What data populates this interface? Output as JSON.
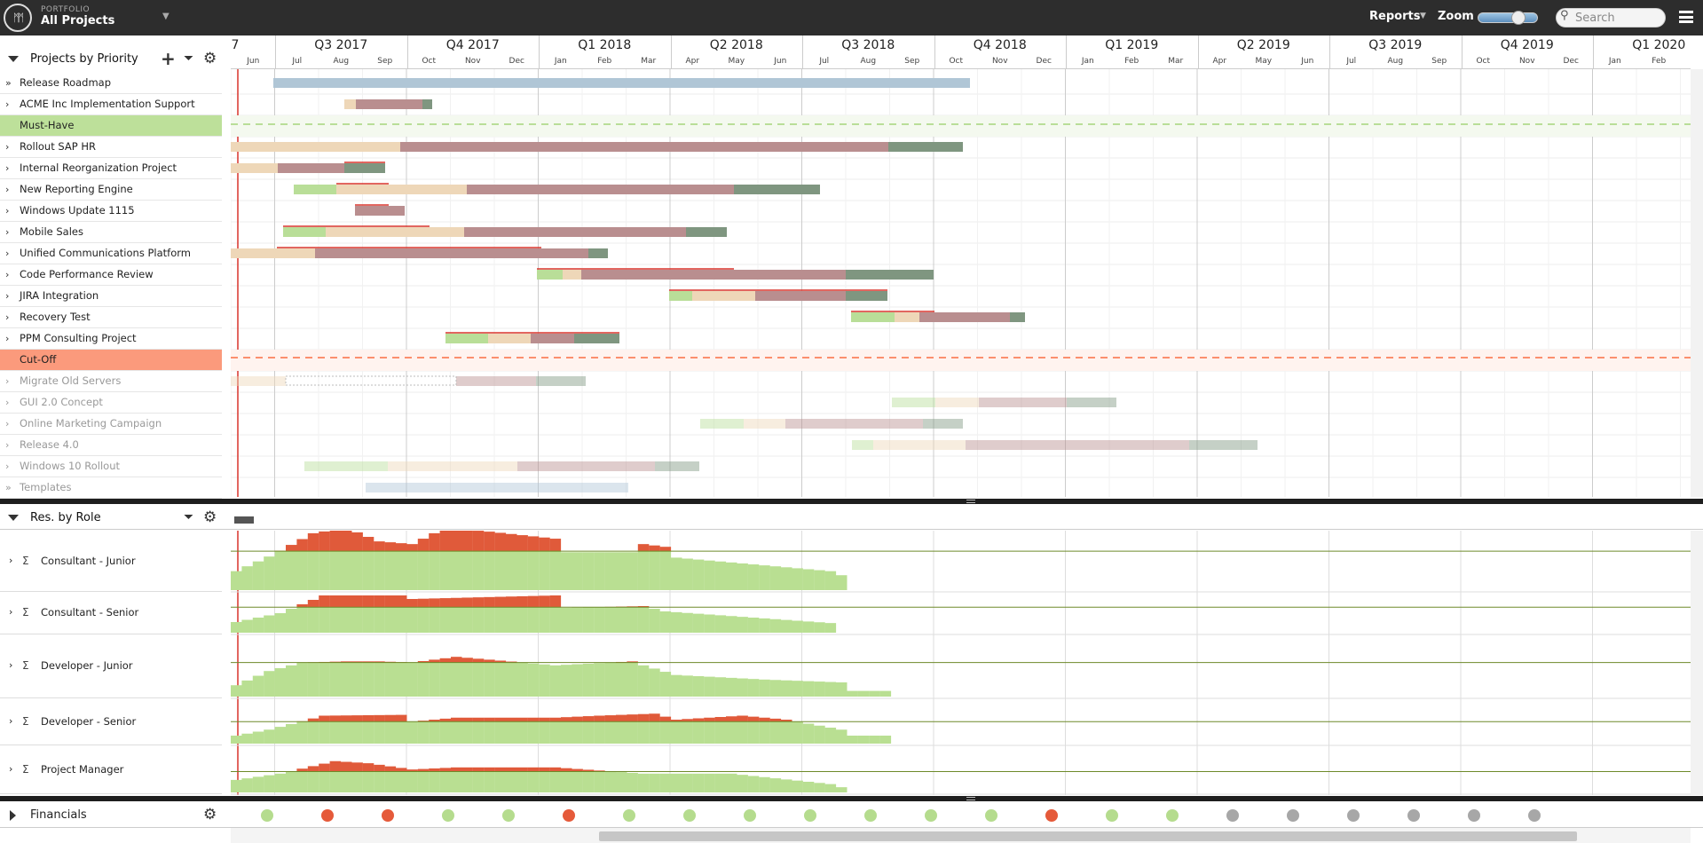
{
  "topbar": {
    "logo_text": "ᛗᛗ",
    "portfolio_label": "PORTFOLIO",
    "portfolio_title": "All Projects",
    "reports_label": "Reports",
    "zoom_label": "Zoom",
    "zoom_level": 0.6,
    "search_placeholder": "Search"
  },
  "projects_panel": {
    "title": "Projects by Priority",
    "icons": [
      "plus-icon",
      "filter-icon",
      "gear-icon"
    ],
    "rows": [
      {
        "label": "Release Roadmap",
        "kind": "group"
      },
      {
        "label": "ACME Inc Implementation Support",
        "kind": "project"
      },
      {
        "label": "Must-Have",
        "kind": "must-have-separator"
      },
      {
        "label": "Rollout SAP HR",
        "kind": "project"
      },
      {
        "label": "Internal Reorganization Project",
        "kind": "project"
      },
      {
        "label": "New Reporting Engine",
        "kind": "project"
      },
      {
        "label": "Windows Update 1115",
        "kind": "project"
      },
      {
        "label": "Mobile Sales",
        "kind": "project"
      },
      {
        "label": "Unified Communications Platform",
        "kind": "project"
      },
      {
        "label": "Code Performance Review",
        "kind": "project"
      },
      {
        "label": "JIRA Integration",
        "kind": "project"
      },
      {
        "label": "Recovery Test",
        "kind": "project"
      },
      {
        "label": "PPM Consulting Project",
        "kind": "project"
      },
      {
        "label": "Cut-Off",
        "kind": "cut-off-separator"
      },
      {
        "label": "Migrate Old Servers",
        "kind": "below-cutoff"
      },
      {
        "label": "GUI 2.0 Concept",
        "kind": "below-cutoff"
      },
      {
        "label": "Online Marketing Campaign",
        "kind": "below-cutoff"
      },
      {
        "label": "Release 4.0",
        "kind": "below-cutoff"
      },
      {
        "label": "Windows 10 Rollout",
        "kind": "below-cutoff"
      },
      {
        "label": "Templates",
        "kind": "group-grey"
      }
    ]
  },
  "timeline": {
    "quarters": [
      "Q3 2017",
      "Q4 2017",
      "Q1 2018",
      "Q2 2018",
      "Q3 2018",
      "Q4 2018",
      "Q1 2019",
      "Q2 2019",
      "Q3 2019",
      "Q4 2019",
      "Q1 2020"
    ],
    "leading_fragment": "7",
    "months": [
      "Jun",
      "Jul",
      "Aug",
      "Sep",
      "Oct",
      "Nov",
      "Dec",
      "Jan",
      "Feb",
      "Mar",
      "Apr",
      "May",
      "Jun",
      "Jul",
      "Aug",
      "Sep",
      "Oct",
      "Nov",
      "Dec",
      "Jan",
      "Feb",
      "Mar",
      "Apr",
      "May",
      "Jun",
      "Jul",
      "Aug",
      "Sep",
      "Oct",
      "Nov",
      "Dec",
      "Jan",
      "Feb"
    ]
  },
  "phase_colors": {
    "initiation": "#b9de98",
    "planning": "#eed7b8",
    "execution": "#b98e8f",
    "closing": "#7f9680",
    "roadmap": "#b0c6d6",
    "overload": "#e05a3a",
    "capacity": "#b9df92",
    "baseline": "#d9342b"
  },
  "resources_panel": {
    "title": "Res. by Role",
    "icons": [
      "filter-icon",
      "gear-icon"
    ],
    "roles": [
      "Consultant - Junior",
      "Consultant - Senior",
      "Developer - Junior",
      "Developer - Senior",
      "Project Manager"
    ]
  },
  "financials": {
    "title": "Financials",
    "status_dots": [
      "green",
      "red",
      "red",
      "green",
      "green",
      "red",
      "green",
      "green",
      "green",
      "green",
      "green",
      "green",
      "green",
      "red",
      "green",
      "green",
      "grey",
      "grey",
      "grey",
      "grey",
      "grey",
      "grey"
    ]
  }
}
